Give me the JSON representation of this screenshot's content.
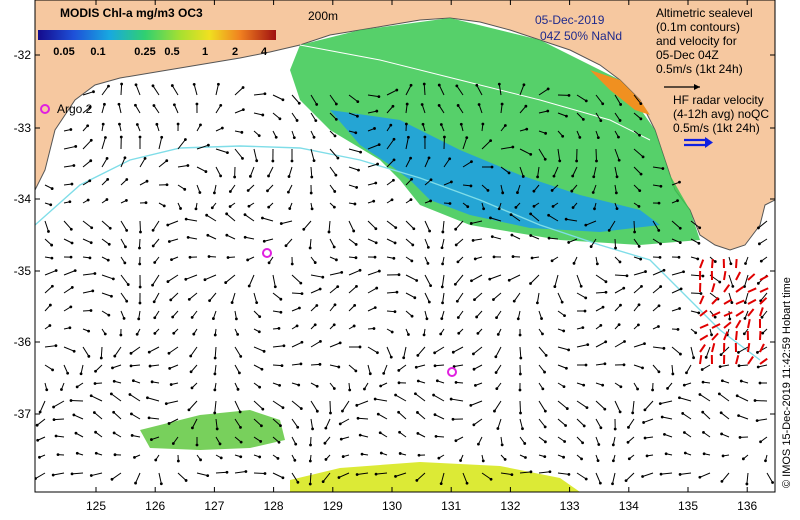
{
  "colorbar": {
    "title": "MODIS Chl-a mg/m3 OC3",
    "ticks": [
      "0.05",
      "0.1",
      "0.25",
      "0.5",
      "1",
      "2",
      "4"
    ]
  },
  "contour_label": "200m",
  "date_label": "05-Dec-2019",
  "time_label": "04Z  50% NaNd",
  "altimetry_legend": {
    "lines": [
      "Altimetric sealevel",
      "(0.1m contours)",
      "and velocity for",
      "05-Dec 04Z",
      "0.5m/s (1kt 24h)"
    ]
  },
  "hf_radar_legend": {
    "lines": [
      "HF radar velocity",
      "(4-12h avg) noQC",
      "0.5m/s (1kt 24h)"
    ]
  },
  "argo_label": "Argo 2",
  "credit": "© IMOS 15-Dec-2019 11:42:59 Hobart time",
  "y_axis_ticks": [
    "-32",
    "-33",
    "-34",
    "-35",
    "-36",
    "-37"
  ],
  "x_axis_ticks": [
    "125",
    "126",
    "127",
    "128",
    "129",
    "130",
    "131",
    "132",
    "133",
    "134",
    "135",
    "136"
  ],
  "colors": {
    "land": "#f6c8a0",
    "velocity_arrow": "#000000",
    "hf_arrow": "#e00000",
    "argo_marker": "#e020e0",
    "contour": "#7fdde8"
  }
}
